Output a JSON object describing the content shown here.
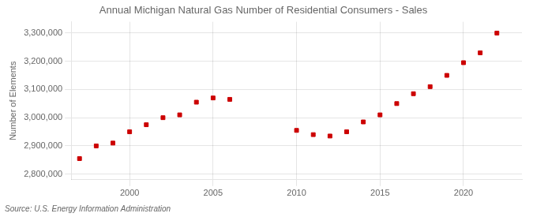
{
  "chart_data": {
    "type": "scatter",
    "title": "Annual Michigan Natural Gas Number of Residential Consumers - Sales",
    "y_label": "Number of Elements",
    "annotations": [
      "Source: U.S. Energy Information Administration"
    ],
    "x": [
      1997,
      1998,
      1999,
      2000,
      2001,
      2002,
      2003,
      2004,
      2005,
      2006,
      2010,
      2011,
      2012,
      2013,
      2014,
      2015,
      2016,
      2017,
      2018,
      2019,
      2020,
      2021,
      2022
    ],
    "values": [
      2855000,
      2900000,
      2910000,
      2950000,
      2975000,
      3000000,
      3010000,
      3055000,
      3070000,
      3065000,
      2955000,
      2940000,
      2935000,
      2950000,
      2985000,
      3010000,
      3050000,
      3085000,
      3110000,
      3150000,
      3195000,
      3230000,
      3300000
    ],
    "color": "#cc0000",
    "marker": "square",
    "xlim": [
      1996.5,
      2023.5
    ],
    "ylim": [
      2780000,
      3340000
    ],
    "xticks": [
      2000,
      2005,
      2010,
      2015,
      2020
    ],
    "yticks": [
      {
        "value": 2800000,
        "label": "2,800,000"
      },
      {
        "value": 2900000,
        "label": "2,900,000"
      },
      {
        "value": 3000000,
        "label": "3,000,000"
      },
      {
        "value": 3100000,
        "label": "3,100,000"
      },
      {
        "value": 3200000,
        "label": "3,200,000"
      },
      {
        "value": 3300000,
        "label": "3,300,000"
      }
    ],
    "grid": true
  }
}
